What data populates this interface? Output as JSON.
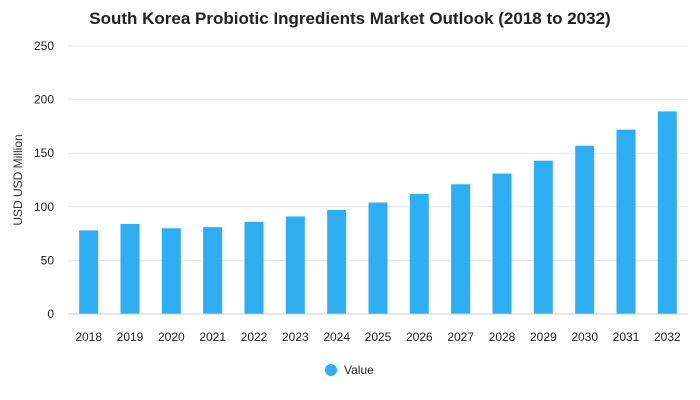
{
  "chart_data": {
    "type": "bar",
    "title": "South Korea Probiotic Ingredients Market Outlook (2018 to 2032)",
    "xlabel": "",
    "ylabel": "USD USD Million",
    "ylim": [
      0,
      250
    ],
    "yticks": [
      0,
      50,
      100,
      150,
      200,
      250
    ],
    "grid": true,
    "legend_position": "bottom",
    "categories": [
      "2018",
      "2019",
      "2020",
      "2021",
      "2022",
      "2023",
      "2024",
      "2025",
      "2026",
      "2027",
      "2028",
      "2029",
      "2030",
      "2031",
      "2032"
    ],
    "series": [
      {
        "name": "Value",
        "color": "#2EAEF2",
        "values": [
          78,
          84,
          80,
          81,
          86,
          91,
          97,
          104,
          112,
          121,
          131,
          143,
          157,
          172,
          189
        ]
      }
    ]
  }
}
